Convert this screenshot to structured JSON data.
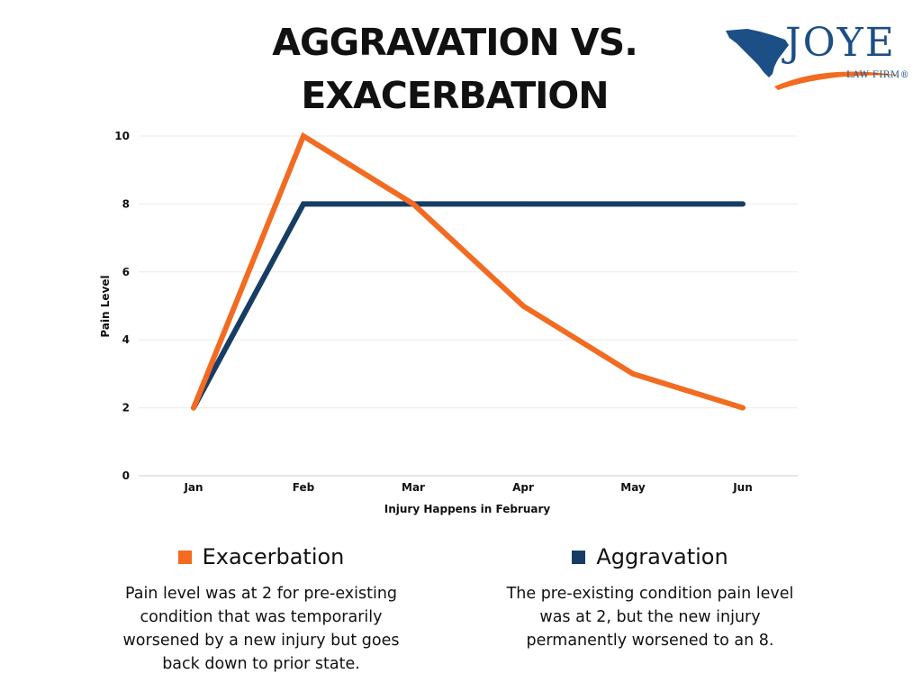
{
  "title_line1": "AGGRAVATION VS.",
  "title_line2": "EXACERBATION",
  "logo": {
    "text": "JOYE",
    "subtitle": "LAW FIRM®",
    "state_color": "#1c4f86",
    "swoosh_color": "#f26b21"
  },
  "chart_data": {
    "type": "line",
    "title": "AGGRAVATION VS. EXACERBATION",
    "xlabel": "Injury Happens in February",
    "ylabel": "Pain Level",
    "categories": [
      "Jan",
      "Feb",
      "Mar",
      "Apr",
      "May",
      "Jun"
    ],
    "ylim": [
      0,
      10
    ],
    "yticks": [
      "0",
      "2",
      "4",
      "6",
      "8",
      "10"
    ],
    "grid": true,
    "series": [
      {
        "name": "Aggravation",
        "color": "#173d64",
        "values": [
          2,
          8,
          8,
          8,
          8,
          8
        ]
      },
      {
        "name": "Exacerbation",
        "color": "#f26b21",
        "values": [
          2,
          10,
          8,
          5,
          3,
          2
        ]
      }
    ]
  },
  "legend": {
    "exacerbation": {
      "label": "Exacerbation",
      "color": "#f26b21",
      "lines": [
        "Pain level was at 2 for pre-existing",
        "condition that was temporarily",
        "worsened by a new injury but goes",
        "back down to prior state."
      ]
    },
    "aggravation": {
      "label": "Aggravation",
      "color": "#173d64",
      "lines": [
        "The pre-existing condition pain level",
        "was at 2, but the new injury",
        "permanently worsened to an 8."
      ]
    }
  }
}
